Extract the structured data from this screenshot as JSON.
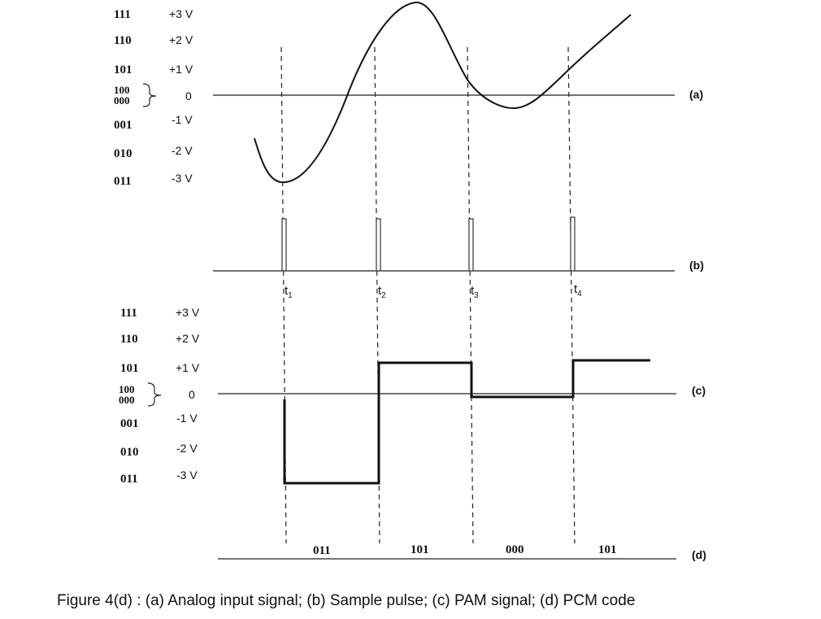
{
  "levels_top": [
    {
      "code": "111",
      "volt": "+3 V"
    },
    {
      "code": "110",
      "volt": "+2 V"
    },
    {
      "code": "101",
      "volt": "+1 V"
    },
    {
      "code": "100",
      "volt": "0"
    },
    {
      "code": "000",
      "volt": ""
    },
    {
      "code": "001",
      "volt": "-1 V"
    },
    {
      "code": "010",
      "volt": "-2 V"
    },
    {
      "code": "011",
      "volt": "-3 V"
    }
  ],
  "levels_bottom": [
    {
      "code": "111",
      "volt": "+3 V"
    },
    {
      "code": "110",
      "volt": "+2 V"
    },
    {
      "code": "101",
      "volt": "+1 V"
    },
    {
      "code": "100",
      "volt": "0"
    },
    {
      "code": "000",
      "volt": ""
    },
    {
      "code": "001",
      "volt": "-1 V"
    },
    {
      "code": "010",
      "volt": "-2 V"
    },
    {
      "code": "011",
      "volt": "-3 V"
    }
  ],
  "panel_labels": {
    "a": "(a)",
    "b": "(b)",
    "c": "(c)",
    "d": "(d)"
  },
  "sample_times": [
    {
      "base": "t",
      "sub": "1"
    },
    {
      "base": "t",
      "sub": "2"
    },
    {
      "base": "t",
      "sub": "3"
    },
    {
      "base": "t",
      "sub": "4"
    }
  ],
  "pcm_codes": [
    "011",
    "101",
    "000",
    "101"
  ],
  "caption": "Figure 4(d) : (a) Analog input signal; (b) Sample pulse; (c)  PAM signal; (d) PCM code"
}
